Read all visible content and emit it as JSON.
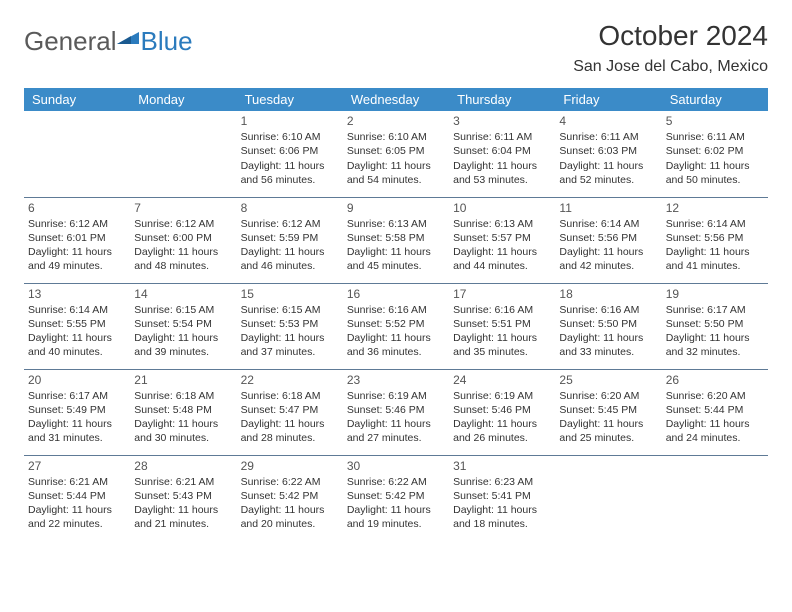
{
  "logo": {
    "general": "General",
    "blue": "Blue"
  },
  "title": "October 2024",
  "location": "San Jose del Cabo, Mexico",
  "colors": {
    "header_bg": "#3b8bc8",
    "header_text": "#ffffff",
    "cell_border": "#5e7a96",
    "logo_gray": "#5a5a5a",
    "logo_blue": "#2b7bbd",
    "body_text": "#333333",
    "bg": "#ffffff"
  },
  "weekdays": [
    "Sunday",
    "Monday",
    "Tuesday",
    "Wednesday",
    "Thursday",
    "Friday",
    "Saturday"
  ],
  "weeks": [
    [
      null,
      null,
      {
        "n": "1",
        "sr": "Sunrise: 6:10 AM",
        "ss": "Sunset: 6:06 PM",
        "dl": "Daylight: 11 hours and 56 minutes."
      },
      {
        "n": "2",
        "sr": "Sunrise: 6:10 AM",
        "ss": "Sunset: 6:05 PM",
        "dl": "Daylight: 11 hours and 54 minutes."
      },
      {
        "n": "3",
        "sr": "Sunrise: 6:11 AM",
        "ss": "Sunset: 6:04 PM",
        "dl": "Daylight: 11 hours and 53 minutes."
      },
      {
        "n": "4",
        "sr": "Sunrise: 6:11 AM",
        "ss": "Sunset: 6:03 PM",
        "dl": "Daylight: 11 hours and 52 minutes."
      },
      {
        "n": "5",
        "sr": "Sunrise: 6:11 AM",
        "ss": "Sunset: 6:02 PM",
        "dl": "Daylight: 11 hours and 50 minutes."
      }
    ],
    [
      {
        "n": "6",
        "sr": "Sunrise: 6:12 AM",
        "ss": "Sunset: 6:01 PM",
        "dl": "Daylight: 11 hours and 49 minutes."
      },
      {
        "n": "7",
        "sr": "Sunrise: 6:12 AM",
        "ss": "Sunset: 6:00 PM",
        "dl": "Daylight: 11 hours and 48 minutes."
      },
      {
        "n": "8",
        "sr": "Sunrise: 6:12 AM",
        "ss": "Sunset: 5:59 PM",
        "dl": "Daylight: 11 hours and 46 minutes."
      },
      {
        "n": "9",
        "sr": "Sunrise: 6:13 AM",
        "ss": "Sunset: 5:58 PM",
        "dl": "Daylight: 11 hours and 45 minutes."
      },
      {
        "n": "10",
        "sr": "Sunrise: 6:13 AM",
        "ss": "Sunset: 5:57 PM",
        "dl": "Daylight: 11 hours and 44 minutes."
      },
      {
        "n": "11",
        "sr": "Sunrise: 6:14 AM",
        "ss": "Sunset: 5:56 PM",
        "dl": "Daylight: 11 hours and 42 minutes."
      },
      {
        "n": "12",
        "sr": "Sunrise: 6:14 AM",
        "ss": "Sunset: 5:56 PM",
        "dl": "Daylight: 11 hours and 41 minutes."
      }
    ],
    [
      {
        "n": "13",
        "sr": "Sunrise: 6:14 AM",
        "ss": "Sunset: 5:55 PM",
        "dl": "Daylight: 11 hours and 40 minutes."
      },
      {
        "n": "14",
        "sr": "Sunrise: 6:15 AM",
        "ss": "Sunset: 5:54 PM",
        "dl": "Daylight: 11 hours and 39 minutes."
      },
      {
        "n": "15",
        "sr": "Sunrise: 6:15 AM",
        "ss": "Sunset: 5:53 PM",
        "dl": "Daylight: 11 hours and 37 minutes."
      },
      {
        "n": "16",
        "sr": "Sunrise: 6:16 AM",
        "ss": "Sunset: 5:52 PM",
        "dl": "Daylight: 11 hours and 36 minutes."
      },
      {
        "n": "17",
        "sr": "Sunrise: 6:16 AM",
        "ss": "Sunset: 5:51 PM",
        "dl": "Daylight: 11 hours and 35 minutes."
      },
      {
        "n": "18",
        "sr": "Sunrise: 6:16 AM",
        "ss": "Sunset: 5:50 PM",
        "dl": "Daylight: 11 hours and 33 minutes."
      },
      {
        "n": "19",
        "sr": "Sunrise: 6:17 AM",
        "ss": "Sunset: 5:50 PM",
        "dl": "Daylight: 11 hours and 32 minutes."
      }
    ],
    [
      {
        "n": "20",
        "sr": "Sunrise: 6:17 AM",
        "ss": "Sunset: 5:49 PM",
        "dl": "Daylight: 11 hours and 31 minutes."
      },
      {
        "n": "21",
        "sr": "Sunrise: 6:18 AM",
        "ss": "Sunset: 5:48 PM",
        "dl": "Daylight: 11 hours and 30 minutes."
      },
      {
        "n": "22",
        "sr": "Sunrise: 6:18 AM",
        "ss": "Sunset: 5:47 PM",
        "dl": "Daylight: 11 hours and 28 minutes."
      },
      {
        "n": "23",
        "sr": "Sunrise: 6:19 AM",
        "ss": "Sunset: 5:46 PM",
        "dl": "Daylight: 11 hours and 27 minutes."
      },
      {
        "n": "24",
        "sr": "Sunrise: 6:19 AM",
        "ss": "Sunset: 5:46 PM",
        "dl": "Daylight: 11 hours and 26 minutes."
      },
      {
        "n": "25",
        "sr": "Sunrise: 6:20 AM",
        "ss": "Sunset: 5:45 PM",
        "dl": "Daylight: 11 hours and 25 minutes."
      },
      {
        "n": "26",
        "sr": "Sunrise: 6:20 AM",
        "ss": "Sunset: 5:44 PM",
        "dl": "Daylight: 11 hours and 24 minutes."
      }
    ],
    [
      {
        "n": "27",
        "sr": "Sunrise: 6:21 AM",
        "ss": "Sunset: 5:44 PM",
        "dl": "Daylight: 11 hours and 22 minutes."
      },
      {
        "n": "28",
        "sr": "Sunrise: 6:21 AM",
        "ss": "Sunset: 5:43 PM",
        "dl": "Daylight: 11 hours and 21 minutes."
      },
      {
        "n": "29",
        "sr": "Sunrise: 6:22 AM",
        "ss": "Sunset: 5:42 PM",
        "dl": "Daylight: 11 hours and 20 minutes."
      },
      {
        "n": "30",
        "sr": "Sunrise: 6:22 AM",
        "ss": "Sunset: 5:42 PM",
        "dl": "Daylight: 11 hours and 19 minutes."
      },
      {
        "n": "31",
        "sr": "Sunrise: 6:23 AM",
        "ss": "Sunset: 5:41 PM",
        "dl": "Daylight: 11 hours and 18 minutes."
      },
      null,
      null
    ]
  ]
}
